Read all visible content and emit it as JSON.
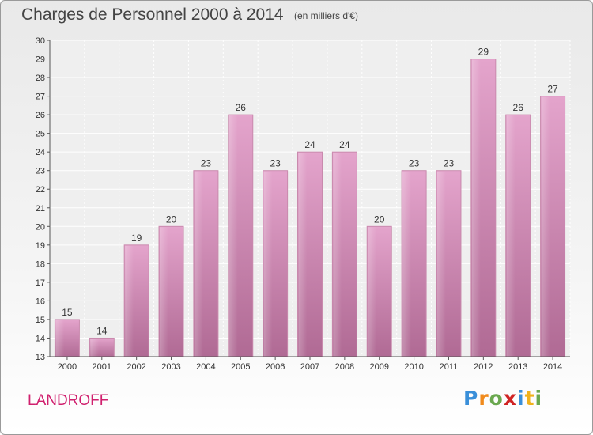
{
  "header": {
    "title": "Charges de Personnel 2000 à 2014",
    "subtitle": "(en milliers d'€)"
  },
  "footer": {
    "commune": "LANDROFF",
    "logo_letters": [
      "P",
      "r",
      "o",
      "x",
      "i",
      "t",
      "i"
    ],
    "logo_colors": [
      "#3a8fd9",
      "#f08a1c",
      "#6aa84f",
      "#d02424",
      "#3a8fd9",
      "#f0b21c",
      "#6aa84f"
    ]
  },
  "chart_data": {
    "type": "bar",
    "title": "Charges de Personnel 2000 à 2014",
    "subtitle": "(en milliers d'€)",
    "categories": [
      "2000",
      "2001",
      "2002",
      "2003",
      "2004",
      "2005",
      "2006",
      "2007",
      "2008",
      "2009",
      "2010",
      "2011",
      "2012",
      "2013",
      "2014"
    ],
    "values": [
      15,
      14,
      19,
      20,
      23,
      26,
      23,
      24,
      24,
      20,
      23,
      23,
      29,
      26,
      27
    ],
    "ylim": [
      13,
      30
    ],
    "yticks": [
      13,
      14,
      15,
      16,
      17,
      18,
      19,
      20,
      21,
      22,
      23,
      24,
      25,
      26,
      27,
      28,
      29,
      30
    ],
    "grid": true,
    "bar_color": "#d98bb8"
  }
}
